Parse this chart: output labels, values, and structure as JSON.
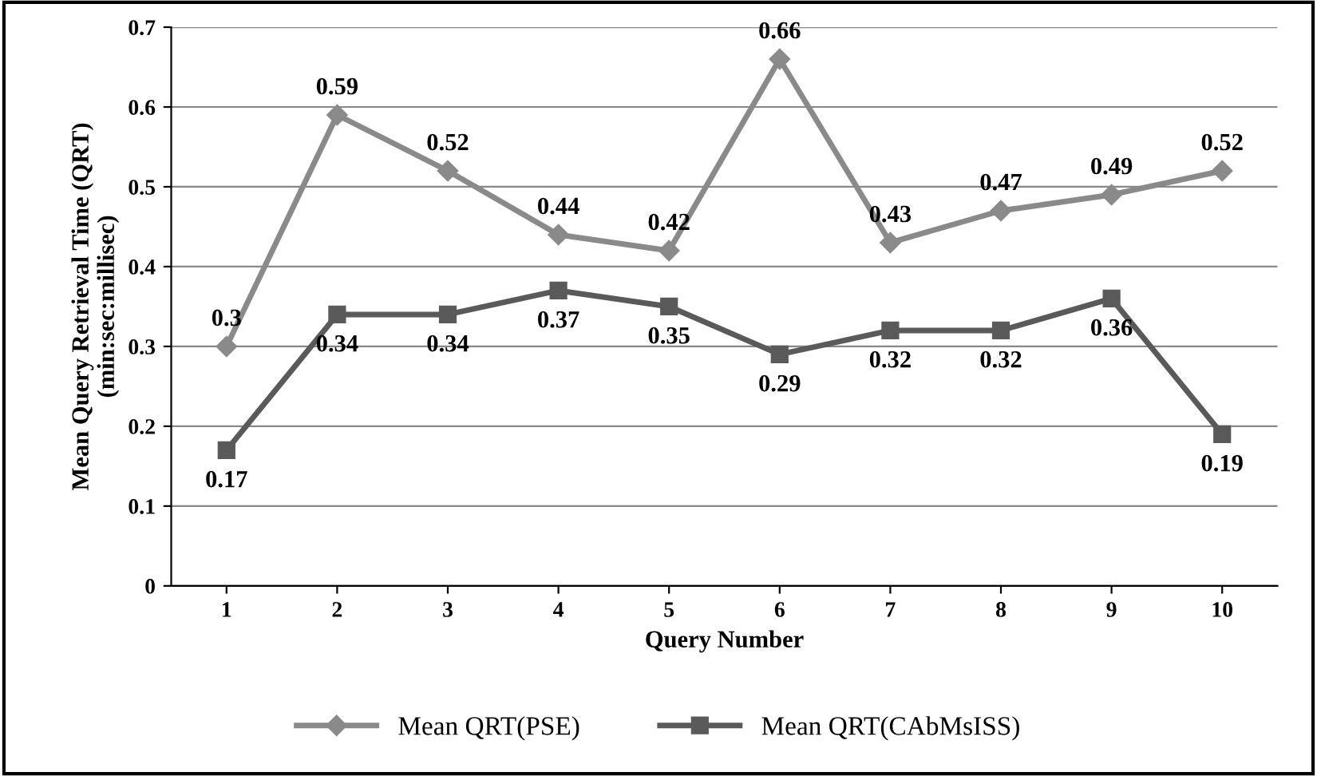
{
  "chart_data": {
    "type": "line",
    "xlabel": "Query Number",
    "ylabel": "Mean Query Retrieval Time (QRT)\n(min:sec:millisec)",
    "categories": [
      "1",
      "2",
      "3",
      "4",
      "5",
      "6",
      "7",
      "8",
      "9",
      "10"
    ],
    "series": [
      {
        "name": "Mean QRT(PSE)",
        "color": "#8a8a8a",
        "marker": "diamond",
        "values": [
          0.3,
          0.59,
          0.52,
          0.44,
          0.42,
          0.66,
          0.43,
          0.47,
          0.49,
          0.52
        ]
      },
      {
        "name": "Mean QRT(CAbMsISS)",
        "color": "#5a5a5a",
        "marker": "square",
        "values": [
          0.17,
          0.34,
          0.34,
          0.37,
          0.35,
          0.29,
          0.32,
          0.32,
          0.36,
          0.19
        ]
      }
    ],
    "ylim": [
      0,
      0.7
    ],
    "yticks": [
      0,
      0.1,
      0.2,
      0.3,
      0.4,
      0.5,
      0.6,
      0.7
    ],
    "grid": "y",
    "legend": "bottom",
    "data_labels": true,
    "line_style": "solid"
  }
}
